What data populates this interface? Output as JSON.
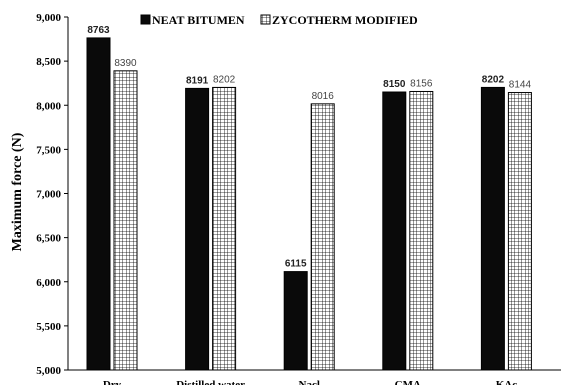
{
  "chart_data": {
    "type": "bar",
    "ylabel": "Maximum force (N)",
    "ylim": [
      5000,
      9000
    ],
    "ytick_step": 500,
    "categories": [
      "Dry",
      "Distilled water",
      "Nacl",
      "CMA",
      "KAc"
    ],
    "series": [
      {
        "name": "NEAT BITUMEN",
        "values": [
          8763,
          8191,
          6115,
          8150,
          8202
        ],
        "fill": "solid",
        "color": "#0a0a0a"
      },
      {
        "name": "ZYCOTHERM MODIFIED",
        "values": [
          8390,
          8202,
          8016,
          8156,
          8144
        ],
        "fill": "grid",
        "color": "#000000"
      }
    ],
    "legend_position": "top",
    "grid": false,
    "data_labels": true
  }
}
